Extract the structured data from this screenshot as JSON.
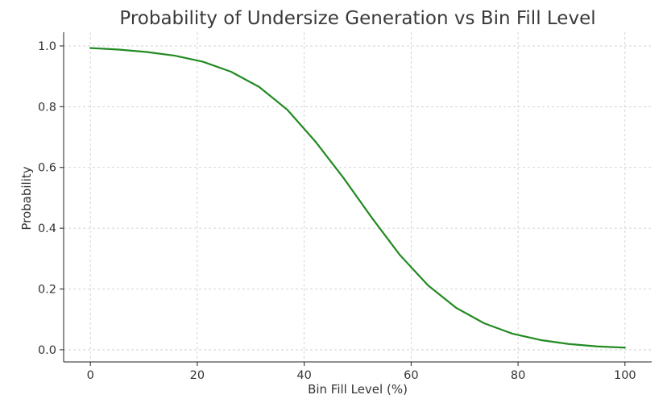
{
  "chart_data": {
    "type": "line",
    "title": "Probability of Undersize Generation vs Bin Fill Level",
    "xlabel": "Bin Fill Level (%)",
    "ylabel": "Probability",
    "xlim": [
      -5,
      105
    ],
    "ylim": [
      -0.04,
      1.045
    ],
    "x_ticks": [
      0,
      20,
      40,
      60,
      80,
      100
    ],
    "y_ticks": [
      0.0,
      0.2,
      0.4,
      0.6,
      0.8,
      1.0
    ],
    "x_tick_labels": [
      "0",
      "20",
      "40",
      "60",
      "80",
      "100"
    ],
    "y_tick_labels": [
      "0.0",
      "0.2",
      "0.4",
      "0.6",
      "0.8",
      "1.0"
    ],
    "grid": true,
    "series": [
      {
        "color": "#228b22",
        "x": [
          0,
          5.26,
          10.53,
          15.79,
          21.05,
          26.32,
          31.58,
          36.84,
          42.11,
          47.37,
          52.63,
          57.89,
          63.16,
          68.42,
          73.68,
          78.95,
          84.21,
          89.47,
          94.74,
          100
        ],
        "y": [
          0.993,
          0.988,
          0.98,
          0.968,
          0.948,
          0.915,
          0.865,
          0.79,
          0.685,
          0.565,
          0.435,
          0.312,
          0.212,
          0.138,
          0.087,
          0.053,
          0.032,
          0.019,
          0.011,
          0.007
        ]
      }
    ]
  }
}
